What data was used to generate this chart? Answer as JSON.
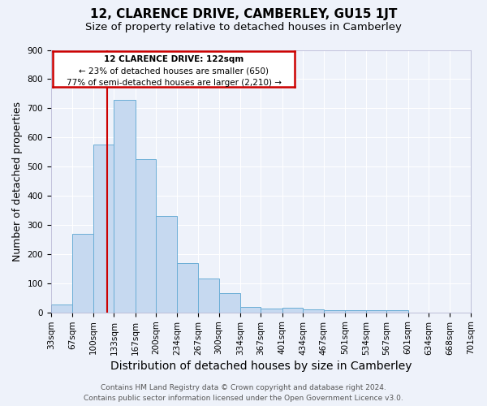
{
  "title": "12, CLARENCE DRIVE, CAMBERLEY, GU15 1JT",
  "subtitle": "Size of property relative to detached houses in Camberley",
  "xlabel": "Distribution of detached houses by size in Camberley",
  "ylabel": "Number of detached properties",
  "bin_edges": [
    33,
    67,
    100,
    133,
    167,
    200,
    234,
    267,
    300,
    334,
    367,
    401,
    434,
    467,
    501,
    534,
    567,
    601,
    634,
    668,
    701
  ],
  "bar_heights": [
    27,
    270,
    575,
    730,
    525,
    330,
    170,
    115,
    67,
    20,
    13,
    15,
    10,
    8,
    8,
    8,
    7,
    0,
    0,
    0
  ],
  "bar_color": "#c6d9f0",
  "bar_edge_color": "#6baed6",
  "property_line_x": 122,
  "property_line_color": "#cc0000",
  "ylim": [
    0,
    900
  ],
  "yticks": [
    0,
    100,
    200,
    300,
    400,
    500,
    600,
    700,
    800,
    900
  ],
  "annotation_title": "12 CLARENCE DRIVE: 122sqm",
  "annotation_line1": "← 23% of detached houses are smaller (650)",
  "annotation_line2": "77% of semi-detached houses are larger (2,210) →",
  "annotation_box_color": "#cc0000",
  "annotation_fill": "#ffffff",
  "footer_line1": "Contains HM Land Registry data © Crown copyright and database right 2024.",
  "footer_line2": "Contains public sector information licensed under the Open Government Licence v3.0.",
  "background_color": "#eef2fa",
  "grid_color": "#ffffff",
  "title_fontsize": 11,
  "subtitle_fontsize": 9.5,
  "axis_label_fontsize": 9,
  "tick_fontsize": 7.5,
  "footer_fontsize": 6.5
}
